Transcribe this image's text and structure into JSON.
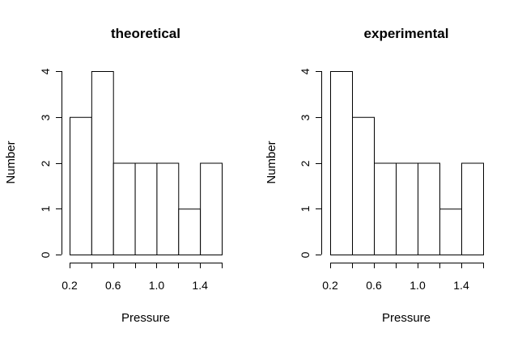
{
  "chart_data": [
    {
      "type": "bar",
      "title": "theoretical",
      "xlabel": "Pressure",
      "ylabel": "Number",
      "bin_edges": [
        0.2,
        0.4,
        0.6,
        0.8,
        1.0,
        1.2,
        1.4,
        1.6
      ],
      "values": [
        3,
        4,
        2,
        2,
        2,
        1,
        2
      ],
      "xticks": [
        0.2,
        0.6,
        1.0,
        1.4
      ],
      "xtick_labels": [
        "0.2",
        "0.6",
        "1.0",
        "1.4"
      ],
      "yticks": [
        0,
        1,
        2,
        3,
        4
      ],
      "ytick_labels": [
        "0",
        "1",
        "2",
        "3",
        "4"
      ],
      "ylim": [
        0,
        4
      ],
      "xlim": [
        0.2,
        1.6
      ],
      "grid": false
    },
    {
      "type": "bar",
      "title": "experimental",
      "xlabel": "Pressure",
      "ylabel": "Number",
      "bin_edges": [
        0.2,
        0.4,
        0.6,
        0.8,
        1.0,
        1.2,
        1.4,
        1.6
      ],
      "values": [
        4,
        3,
        2,
        2,
        2,
        1,
        2
      ],
      "xticks": [
        0.2,
        0.6,
        1.0,
        1.4
      ],
      "xtick_labels": [
        "0.2",
        "0.6",
        "1.0",
        "1.4"
      ],
      "yticks": [
        0,
        1,
        2,
        3,
        4
      ],
      "ytick_labels": [
        "0",
        "1",
        "2",
        "3",
        "4"
      ],
      "ylim": [
        0,
        4
      ],
      "xlim": [
        0.2,
        1.6
      ],
      "grid": false
    }
  ]
}
